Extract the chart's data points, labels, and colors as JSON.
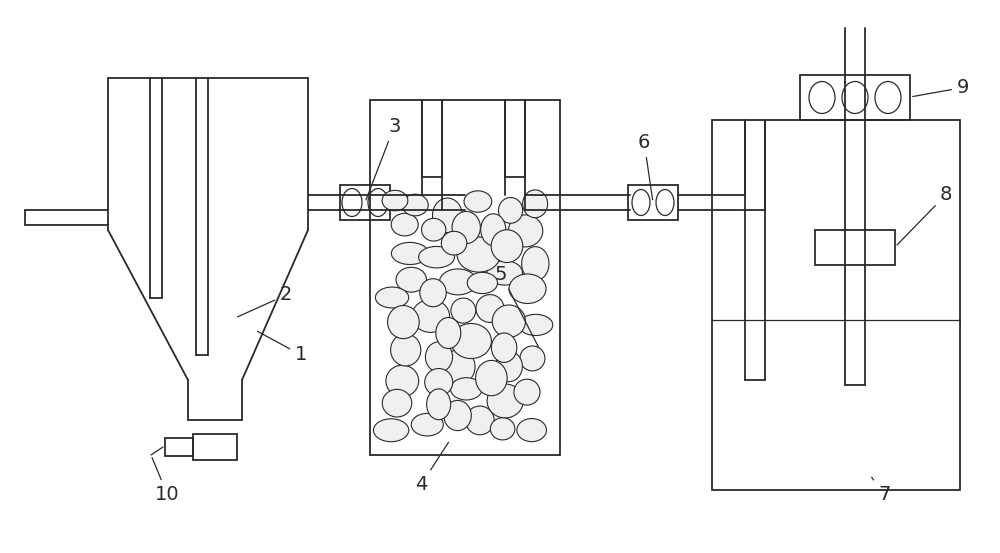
{
  "fig_width": 10.0,
  "fig_height": 5.53,
  "bg_color": "#ffffff",
  "line_color": "#2a2a2a",
  "lw": 1.3,
  "lw_thin": 0.9
}
